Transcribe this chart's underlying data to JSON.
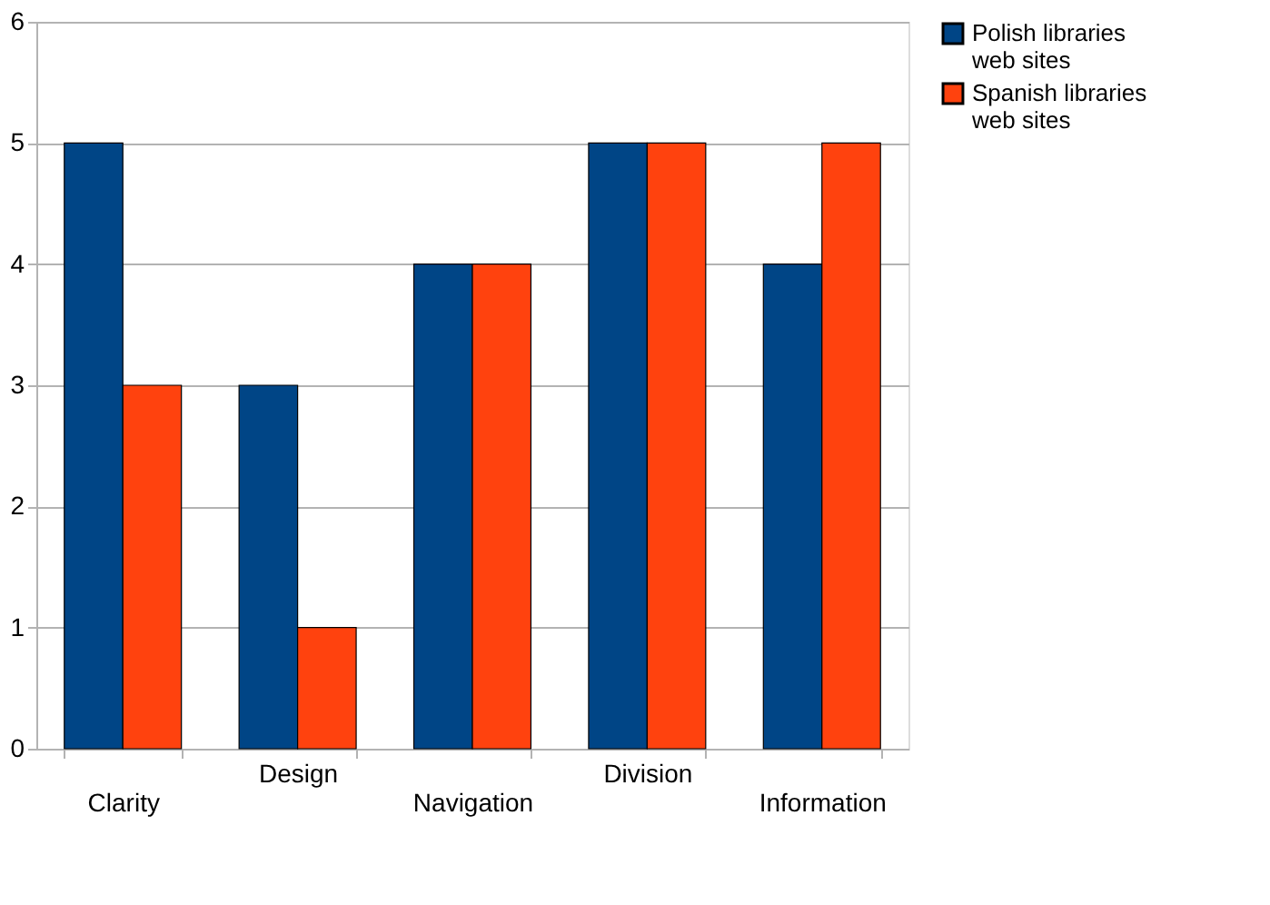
{
  "chart_data": {
    "type": "bar",
    "categories": [
      "Clarity",
      "Design",
      "Navigation",
      "Division",
      "Information"
    ],
    "series": [
      {
        "name": "Polish libraries web sites",
        "color": "#004586",
        "values": [
          5,
          3,
          4,
          5,
          4
        ]
      },
      {
        "name": "Spanish libraries web sites",
        "color": "#ff420e",
        "values": [
          3,
          1,
          4,
          5,
          5
        ]
      }
    ],
    "ylim": [
      0,
      6
    ],
    "yticks": [
      0,
      1,
      2,
      3,
      4,
      5,
      6
    ],
    "grid": "y",
    "legend": "right"
  }
}
